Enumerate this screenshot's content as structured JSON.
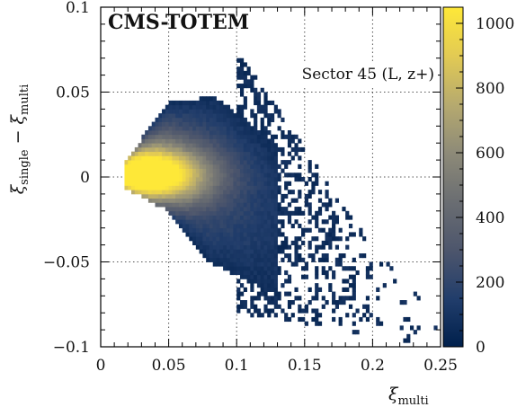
{
  "chart_data": {
    "type": "heatmap",
    "experiment_label": "CMS-TOTEM",
    "sector_label": "Sector 45 (L, z+)",
    "xlabel": "ξ",
    "xlabel_sub": "multi",
    "ylabel": "ξ",
    "ylabel_sub_1": "single",
    "ylabel_minus": " − ξ",
    "ylabel_sub_2": "multi",
    "xlim": [
      0,
      0.25
    ],
    "ylim": [
      -0.1,
      0.1
    ],
    "x_ticks": [
      {
        "value": 0,
        "label": "0"
      },
      {
        "value": 0.05,
        "label": "0.05"
      },
      {
        "value": 0.1,
        "label": "0.1"
      },
      {
        "value": 0.15,
        "label": "0.15"
      },
      {
        "value": 0.2,
        "label": "0.2"
      },
      {
        "value": 0.25,
        "label": "0.25"
      }
    ],
    "y_ticks": [
      {
        "value": -0.1,
        "label": "−0.1"
      },
      {
        "value": -0.05,
        "label": "−0.05"
      },
      {
        "value": 0,
        "label": "0"
      },
      {
        "value": 0.05,
        "label": "0.05"
      },
      {
        "value": 0.1,
        "label": "0.1"
      }
    ],
    "z_range": [
      0,
      1050
    ],
    "z_ticks": [
      {
        "value": 0,
        "label": "0"
      },
      {
        "value": 200,
        "label": "200"
      },
      {
        "value": 400,
        "label": "400"
      },
      {
        "value": 600,
        "label": "600"
      },
      {
        "value": 800,
        "label": "800"
      },
      {
        "value": 1000,
        "label": "1000"
      }
    ],
    "colormap": [
      "#00204c",
      "#213d6b",
      "#4c556c",
      "#6b6e72",
      "#8d8a78",
      "#b5a96f",
      "#e3cb53",
      "#fee838"
    ],
    "grid": "dotted",
    "bin_size_x": 0.0025,
    "bin_size_y": 0.0025,
    "peak": {
      "x": 0.035,
      "y": 0.001,
      "z": 1000
    },
    "core_region": {
      "x_range": [
        0.017,
        0.13
      ],
      "upper_edge": [
        [
          0.017,
          0.008
        ],
        [
          0.05,
          0.045
        ],
        [
          0.085,
          0.047
        ],
        [
          0.13,
          0.02
        ]
      ],
      "lower_edge": [
        [
          0.017,
          -0.006
        ],
        [
          0.05,
          -0.02
        ],
        [
          0.08,
          -0.05
        ],
        [
          0.13,
          -0.07
        ]
      ]
    },
    "tail_region": {
      "x_range": [
        0.1,
        0.25
      ],
      "upper_edge": [
        [
          0.1,
          0.075
        ],
        [
          0.2,
          -0.04
        ],
        [
          0.25,
          -0.085
        ]
      ],
      "lower_edge": [
        [
          0.1,
          -0.08
        ],
        [
          0.25,
          -0.1
        ]
      ]
    }
  }
}
